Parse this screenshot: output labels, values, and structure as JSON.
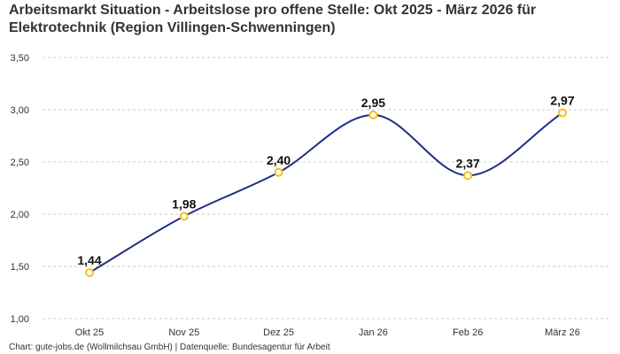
{
  "chart_data": {
    "type": "line",
    "title": "Arbeitsmarkt Situation - Arbeitslose pro offene Stelle: Okt 2025 - März 2026 für Elektrotechnik (Region Villingen-Schwenningen)",
    "categories": [
      "Okt 25",
      "Nov 25",
      "Dez 25",
      "Jan 26",
      "Feb 26",
      "März 26"
    ],
    "values": [
      1.44,
      1.98,
      2.4,
      2.95,
      2.37,
      2.97
    ],
    "value_labels": [
      "1,44",
      "1,98",
      "2,40",
      "2,95",
      "2,37",
      "2,97"
    ],
    "ylim": [
      1.0,
      3.5
    ],
    "yticks": [
      1.0,
      1.5,
      2.0,
      2.5,
      3.0,
      3.5
    ],
    "ytick_labels": [
      "1,00",
      "1,50",
      "2,00",
      "2,50",
      "3,00",
      "3,50"
    ],
    "xlabel": "",
    "ylabel": "",
    "grid": true,
    "smooth": true,
    "legend": "none",
    "colors": {
      "line": "#1f2f86",
      "marker_stroke": "#f2c21b",
      "marker_fill": "#ffffff",
      "grid": "#cccccc"
    }
  },
  "footer": {
    "credit": "Chart: gute-jobs.de (Wollmilchsau GmbH) | Datenquelle: Bundesagentur für Arbeit"
  }
}
